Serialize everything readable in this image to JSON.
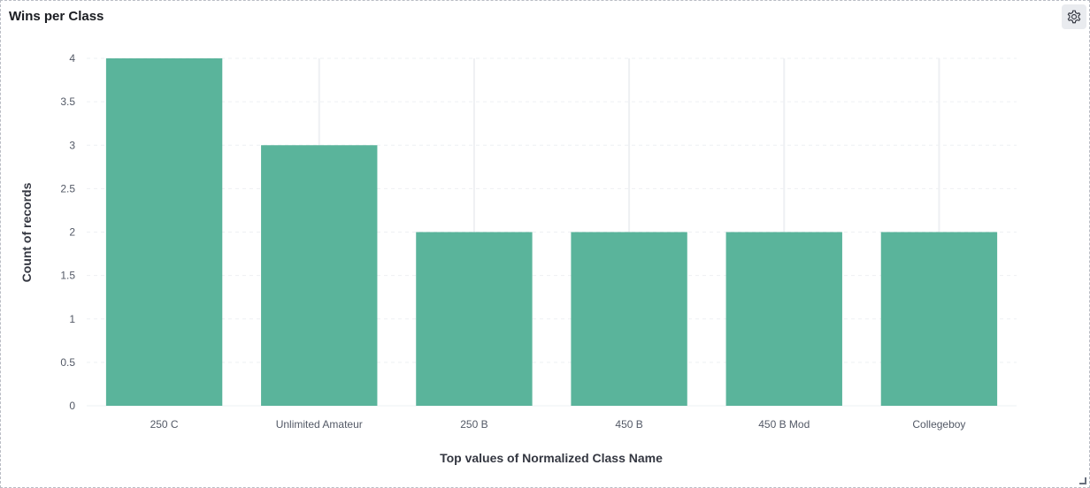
{
  "panel": {
    "title": "Wins per Class"
  },
  "icons": {
    "settings": "gear-icon"
  },
  "colors": {
    "bar": "#5ab49b",
    "grid": "#eef0f3",
    "axis_text": "#535966"
  },
  "chart_data": {
    "type": "bar",
    "title": "Wins per Class",
    "xlabel": "Top values of Normalized Class Name",
    "ylabel": "Count of records",
    "categories": [
      "250 C",
      "Unlimited Amateur",
      "250 B",
      "450 B",
      "450 B Mod",
      "Collegeboy"
    ],
    "values": [
      4,
      3,
      2,
      2,
      2,
      2
    ],
    "ylim": [
      0,
      4
    ],
    "yticks": [
      0,
      0.5,
      1,
      1.5,
      2,
      2.5,
      3,
      3.5,
      4
    ],
    "grid": true,
    "legend": "none"
  }
}
